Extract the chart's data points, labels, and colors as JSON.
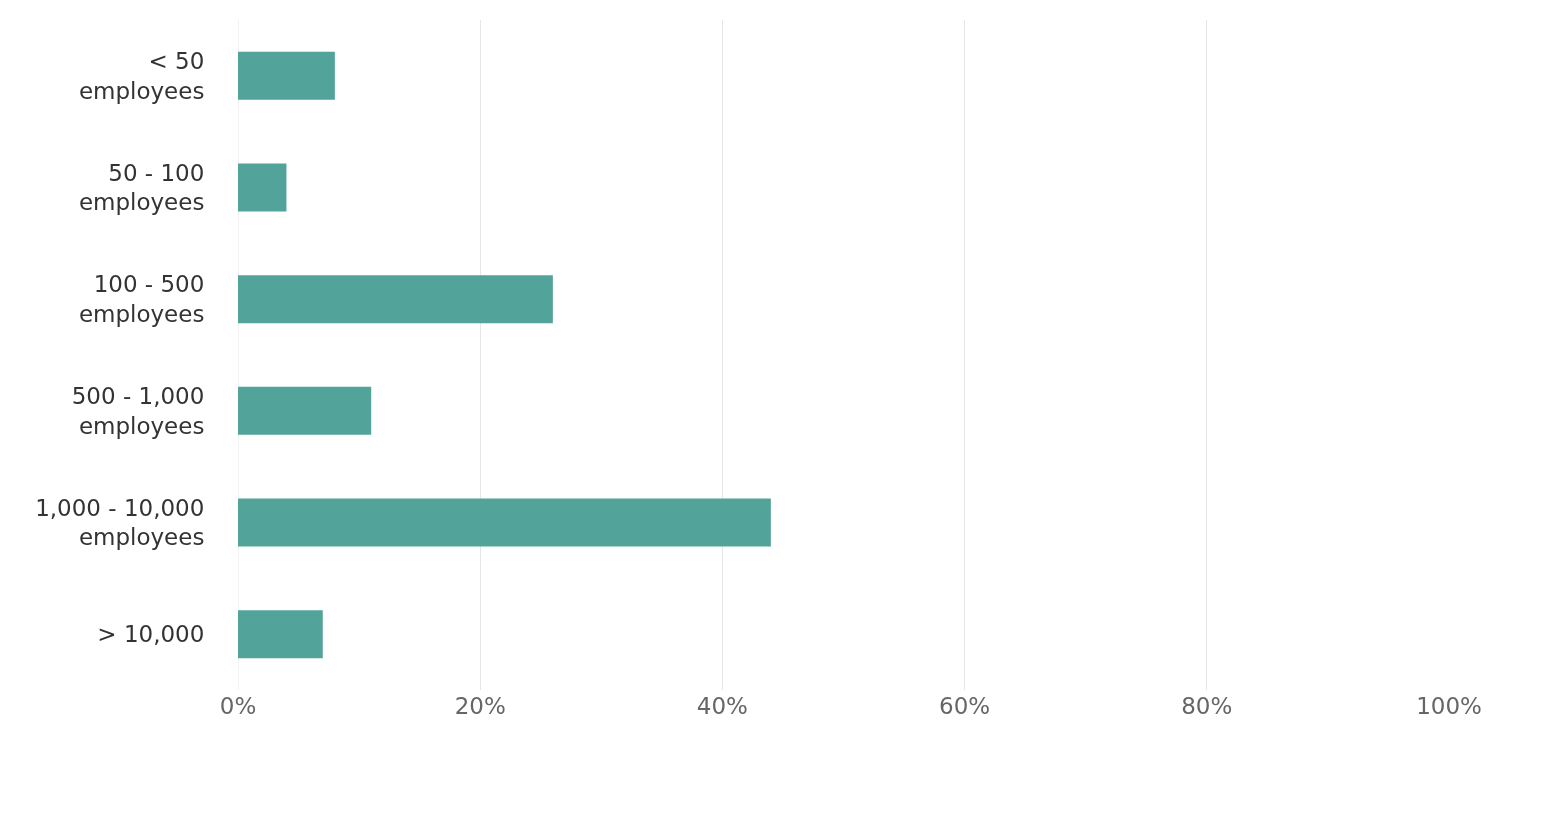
{
  "chart_data": {
    "type": "bar",
    "orientation": "horizontal",
    "categories": [
      "< 50\nemployees",
      "50 - 100\nemployees",
      "100 - 500\nemployees",
      "500 - 1,000\nemployees",
      "1,000 - 10,000\nemployees",
      "> 10,000"
    ],
    "values": [
      8,
      4,
      26,
      11,
      44,
      7
    ],
    "color": "#52a39a",
    "xlim": [
      0,
      100
    ],
    "xticks": [
      {
        "value": 0,
        "label": "0%"
      },
      {
        "value": 20,
        "label": "20%"
      },
      {
        "value": 40,
        "label": "40%"
      },
      {
        "value": 60,
        "label": "60%"
      },
      {
        "value": 80,
        "label": "80%"
      },
      {
        "value": 100,
        "label": "100%"
      }
    ],
    "grid": "x",
    "legend": false
  }
}
